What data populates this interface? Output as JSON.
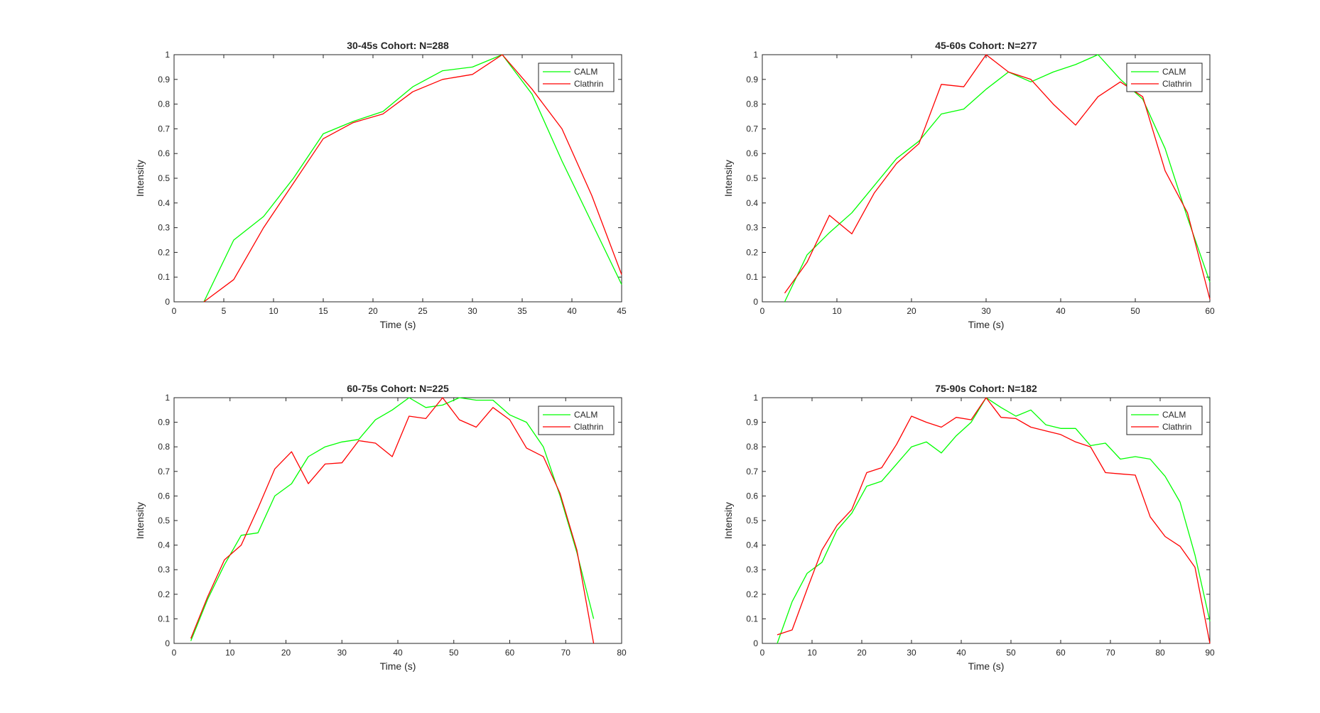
{
  "figure": {
    "background": "#ffffff",
    "colors": {
      "CALM": "#00ff00",
      "Clathrin": "#ff0000",
      "axis": "#262626"
    }
  },
  "chart_data": [
    {
      "type": "line",
      "title": "30-45s Cohort: N=288",
      "xlabel": "Time (s)",
      "ylabel": "Intensity",
      "xlim": [
        0,
        45
      ],
      "ylim": [
        0,
        1
      ],
      "xticks": [
        0,
        5,
        10,
        15,
        20,
        25,
        30,
        35,
        40,
        45
      ],
      "yticks": [
        0,
        0.1,
        0.2,
        0.3,
        0.4,
        0.5,
        0.6,
        0.7,
        0.8,
        0.9,
        1
      ],
      "legend": "top-right",
      "grid": false,
      "series": [
        {
          "name": "CALM",
          "color": "#00ff00",
          "x": [
            3,
            6,
            9,
            12,
            15,
            18,
            21,
            24,
            27,
            30,
            33,
            36,
            39,
            42,
            45
          ],
          "y": [
            0,
            0.25,
            0.345,
            0.5,
            0.68,
            0.73,
            0.77,
            0.87,
            0.935,
            0.95,
            1.0,
            0.84,
            0.57,
            0.32,
            0.07
          ]
        },
        {
          "name": "Clathrin",
          "color": "#ff0000",
          "x": [
            3,
            6,
            9,
            12,
            15,
            18,
            21,
            24,
            27,
            30,
            33,
            36,
            39,
            42,
            45
          ],
          "y": [
            0,
            0.09,
            0.3,
            0.48,
            0.66,
            0.725,
            0.76,
            0.85,
            0.9,
            0.92,
            1.0,
            0.86,
            0.7,
            0.43,
            0.11
          ]
        }
      ]
    },
    {
      "type": "line",
      "title": "45-60s Cohort: N=277",
      "xlabel": "Time (s)",
      "ylabel": "Intensity",
      "xlim": [
        0,
        60
      ],
      "ylim": [
        0,
        1
      ],
      "xticks": [
        0,
        10,
        20,
        30,
        40,
        50,
        60
      ],
      "yticks": [
        0,
        0.1,
        0.2,
        0.3,
        0.4,
        0.5,
        0.6,
        0.7,
        0.8,
        0.9,
        1
      ],
      "legend": "top-right",
      "grid": false,
      "series": [
        {
          "name": "CALM",
          "color": "#00ff00",
          "x": [
            3,
            6,
            9,
            12,
            15,
            18,
            21,
            24,
            27,
            30,
            33,
            36,
            39,
            42,
            45,
            48,
            51,
            54,
            57,
            60
          ],
          "y": [
            0,
            0.19,
            0.28,
            0.36,
            0.47,
            0.58,
            0.65,
            0.76,
            0.78,
            0.86,
            0.93,
            0.89,
            0.93,
            0.96,
            1.0,
            0.9,
            0.82,
            0.62,
            0.34,
            0.08
          ]
        },
        {
          "name": "Clathrin",
          "color": "#ff0000",
          "x": [
            3,
            6,
            9,
            12,
            15,
            18,
            21,
            24,
            27,
            30,
            33,
            36,
            39,
            42,
            45,
            48,
            51,
            54,
            57,
            60
          ],
          "y": [
            0.035,
            0.16,
            0.35,
            0.275,
            0.44,
            0.56,
            0.64,
            0.88,
            0.87,
            1.0,
            0.93,
            0.9,
            0.8,
            0.715,
            0.83,
            0.89,
            0.83,
            0.53,
            0.36,
            0.01
          ]
        }
      ]
    },
    {
      "type": "line",
      "title": "60-75s Cohort: N=225",
      "xlabel": "Time (s)",
      "ylabel": "Intensity",
      "xlim": [
        0,
        80
      ],
      "ylim": [
        0,
        1
      ],
      "xticks": [
        0,
        10,
        20,
        30,
        40,
        50,
        60,
        70,
        80
      ],
      "yticks": [
        0,
        0.1,
        0.2,
        0.3,
        0.4,
        0.5,
        0.6,
        0.7,
        0.8,
        0.9,
        1
      ],
      "legend": "top-right",
      "grid": false,
      "series": [
        {
          "name": "CALM",
          "color": "#00ff00",
          "x": [
            3,
            6,
            9,
            12,
            15,
            18,
            21,
            24,
            27,
            30,
            33,
            36,
            39,
            42,
            45,
            48,
            51,
            54,
            57,
            60,
            63,
            66,
            69,
            72,
            75
          ],
          "y": [
            0.01,
            0.18,
            0.32,
            0.44,
            0.45,
            0.6,
            0.65,
            0.76,
            0.8,
            0.82,
            0.83,
            0.91,
            0.95,
            1.0,
            0.96,
            0.97,
            1.0,
            0.99,
            0.99,
            0.93,
            0.9,
            0.8,
            0.6,
            0.37,
            0.1
          ]
        },
        {
          "name": "Clathrin",
          "color": "#ff0000",
          "x": [
            3,
            6,
            9,
            12,
            15,
            18,
            21,
            24,
            27,
            30,
            33,
            36,
            39,
            42,
            45,
            48,
            51,
            54,
            57,
            60,
            63,
            66,
            69,
            72,
            75
          ],
          "y": [
            0.02,
            0.19,
            0.34,
            0.4,
            0.55,
            0.71,
            0.78,
            0.65,
            0.73,
            0.735,
            0.825,
            0.815,
            0.76,
            0.925,
            0.915,
            1.0,
            0.91,
            0.88,
            0.96,
            0.91,
            0.795,
            0.76,
            0.61,
            0.38,
            0.0
          ]
        }
      ]
    },
    {
      "type": "line",
      "title": "75-90s Cohort: N=182",
      "xlabel": "Time (s)",
      "ylabel": "Intensity",
      "xlim": [
        0,
        90
      ],
      "ylim": [
        0,
        1
      ],
      "xticks": [
        0,
        10,
        20,
        30,
        40,
        50,
        60,
        70,
        80,
        90
      ],
      "yticks": [
        0,
        0.1,
        0.2,
        0.3,
        0.4,
        0.5,
        0.6,
        0.7,
        0.8,
        0.9,
        1
      ],
      "legend": "top-right",
      "grid": false,
      "series": [
        {
          "name": "CALM",
          "color": "#00ff00",
          "x": [
            3,
            6,
            9,
            12,
            15,
            18,
            21,
            24,
            27,
            30,
            33,
            36,
            39,
            42,
            45,
            48,
            51,
            54,
            57,
            60,
            63,
            66,
            69,
            72,
            75,
            78,
            81,
            84,
            87,
            90
          ],
          "y": [
            0.0,
            0.17,
            0.285,
            0.33,
            0.46,
            0.53,
            0.64,
            0.66,
            0.73,
            0.8,
            0.82,
            0.775,
            0.845,
            0.9,
            1.0,
            0.96,
            0.925,
            0.95,
            0.89,
            0.875,
            0.875,
            0.805,
            0.815,
            0.75,
            0.76,
            0.75,
            0.68,
            0.575,
            0.36,
            0.09
          ]
        },
        {
          "name": "Clathrin",
          "color": "#ff0000",
          "x": [
            3,
            6,
            9,
            12,
            15,
            18,
            21,
            24,
            27,
            30,
            33,
            36,
            39,
            42,
            45,
            48,
            51,
            54,
            57,
            60,
            63,
            66,
            69,
            72,
            75,
            78,
            81,
            84,
            87,
            90
          ],
          "y": [
            0.035,
            0.055,
            0.22,
            0.38,
            0.48,
            0.545,
            0.695,
            0.715,
            0.81,
            0.925,
            0.9,
            0.88,
            0.92,
            0.91,
            1.0,
            0.92,
            0.915,
            0.88,
            0.865,
            0.85,
            0.82,
            0.8,
            0.695,
            0.69,
            0.685,
            0.515,
            0.435,
            0.395,
            0.31,
            0.0
          ]
        }
      ]
    }
  ]
}
